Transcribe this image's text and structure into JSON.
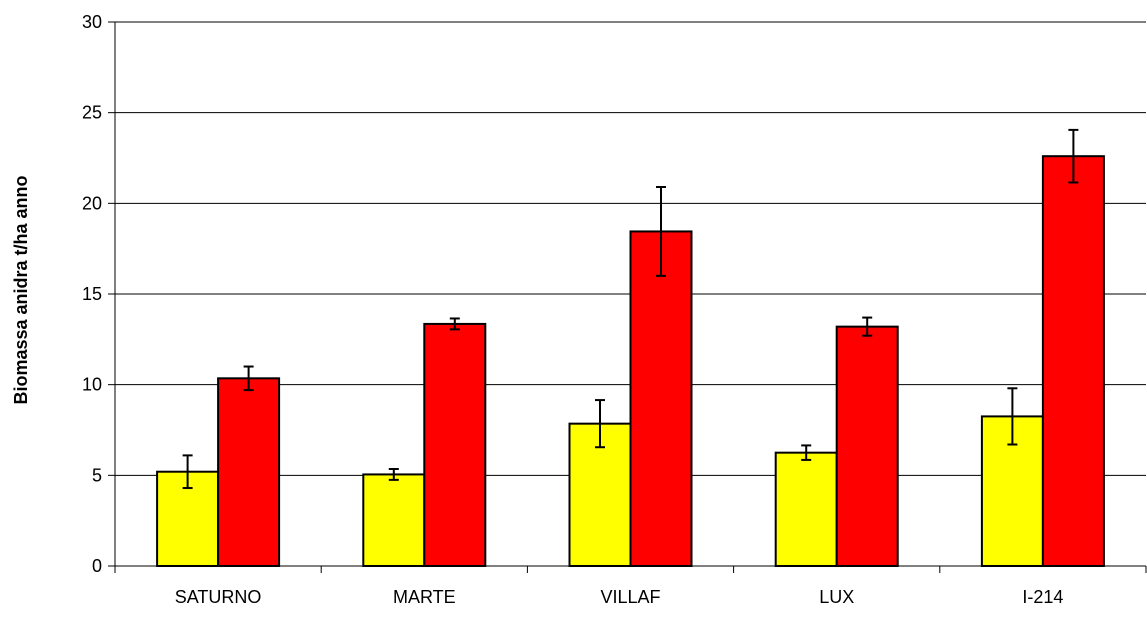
{
  "chart_data": {
    "type": "bar",
    "title": "",
    "xlabel": "",
    "ylabel": "Biomassa anidra t/ha anno",
    "categories": [
      "SATURNO",
      "MARTE",
      "VILLAF",
      "LUX",
      "I-214"
    ],
    "ylim": [
      0,
      30
    ],
    "yticks": [
      0,
      5,
      10,
      15,
      20,
      25,
      30
    ],
    "grid": true,
    "legend": "none",
    "series": [
      {
        "color": "#FFFF00",
        "values": [
          5.2,
          5.05,
          7.85,
          6.25,
          8.25
        ],
        "errors": [
          0.9,
          0.3,
          1.3,
          0.4,
          1.55
        ]
      },
      {
        "color": "#FF0000",
        "values": [
          10.35,
          13.35,
          18.45,
          13.2,
          22.6
        ],
        "errors": [
          0.65,
          0.3,
          2.45,
          0.5,
          1.45
        ]
      }
    ]
  }
}
